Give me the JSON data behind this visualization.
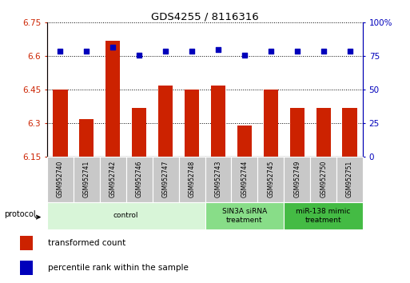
{
  "title": "GDS4255 / 8116316",
  "samples": [
    "GSM952740",
    "GSM952741",
    "GSM952742",
    "GSM952746",
    "GSM952747",
    "GSM952748",
    "GSM952743",
    "GSM952744",
    "GSM952745",
    "GSM952749",
    "GSM952750",
    "GSM952751"
  ],
  "transformed_counts": [
    6.45,
    6.32,
    6.67,
    6.37,
    6.47,
    6.45,
    6.47,
    6.29,
    6.45,
    6.37,
    6.37,
    6.37
  ],
  "percentile_ranks": [
    79,
    79,
    82,
    76,
    79,
    79,
    80,
    76,
    79,
    79,
    79,
    79
  ],
  "ylim_left": [
    6.15,
    6.75
  ],
  "ylim_right": [
    0,
    100
  ],
  "yticks_left": [
    6.15,
    6.3,
    6.45,
    6.6,
    6.75
  ],
  "yticks_right": [
    0,
    25,
    50,
    75,
    100
  ],
  "bar_color": "#cc2200",
  "dot_color": "#0000bb",
  "protocol_groups": [
    {
      "label": "control",
      "start": 0,
      "end": 5,
      "color": "#d8f5d8"
    },
    {
      "label": "SIN3A siRNA\ntreatment",
      "start": 6,
      "end": 8,
      "color": "#88dd88"
    },
    {
      "label": "miR-138 mimic\ntreatment",
      "start": 9,
      "end": 11,
      "color": "#44bb44"
    }
  ],
  "legend_red_label": "transformed count",
  "legend_blue_label": "percentile rank within the sample",
  "protocol_label": "protocol"
}
